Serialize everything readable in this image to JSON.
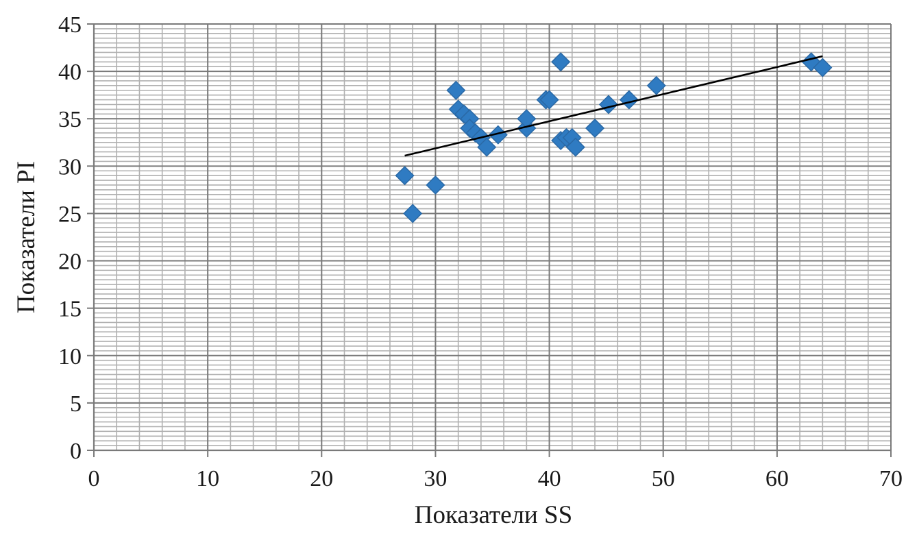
{
  "chart_data": {
    "type": "scatter",
    "title": "",
    "xlabel": "Показатели SS",
    "ylabel": "Показатели PI",
    "xlim": [
      0,
      70
    ],
    "ylim": [
      0,
      45
    ],
    "x_ticks": [
      0,
      10,
      20,
      30,
      40,
      50,
      60,
      70
    ],
    "y_ticks": [
      0,
      5,
      10,
      15,
      20,
      25,
      30,
      35,
      40,
      45
    ],
    "grid": {
      "major": true,
      "minor": true,
      "x_minor_step": 2,
      "y_minor_step": 0.5
    },
    "legend": "none",
    "series": [
      {
        "marker": "diamond",
        "color": "#2f7bc2",
        "points": [
          [
            27.3,
            29
          ],
          [
            28,
            25
          ],
          [
            30,
            28
          ],
          [
            31.8,
            38
          ],
          [
            32,
            36
          ],
          [
            32.5,
            35.5
          ],
          [
            33,
            35
          ],
          [
            33,
            34
          ],
          [
            33.5,
            33.5
          ],
          [
            34,
            33
          ],
          [
            34.5,
            32
          ],
          [
            35.5,
            33.3
          ],
          [
            38,
            34
          ],
          [
            38,
            35
          ],
          [
            39.7,
            37
          ],
          [
            40,
            37
          ],
          [
            41,
            41
          ],
          [
            41,
            32.7
          ],
          [
            41.5,
            33
          ],
          [
            42,
            33
          ],
          [
            42.3,
            32
          ],
          [
            44,
            34
          ],
          [
            45.2,
            36.5
          ],
          [
            47,
            37
          ],
          [
            49.4,
            38.5
          ],
          [
            63,
            41
          ],
          [
            64,
            40.4
          ]
        ]
      }
    ],
    "trendline": {
      "type": "linear",
      "color": "#000000",
      "x": [
        27.3,
        64
      ],
      "y": [
        31.1,
        41.6
      ]
    }
  }
}
